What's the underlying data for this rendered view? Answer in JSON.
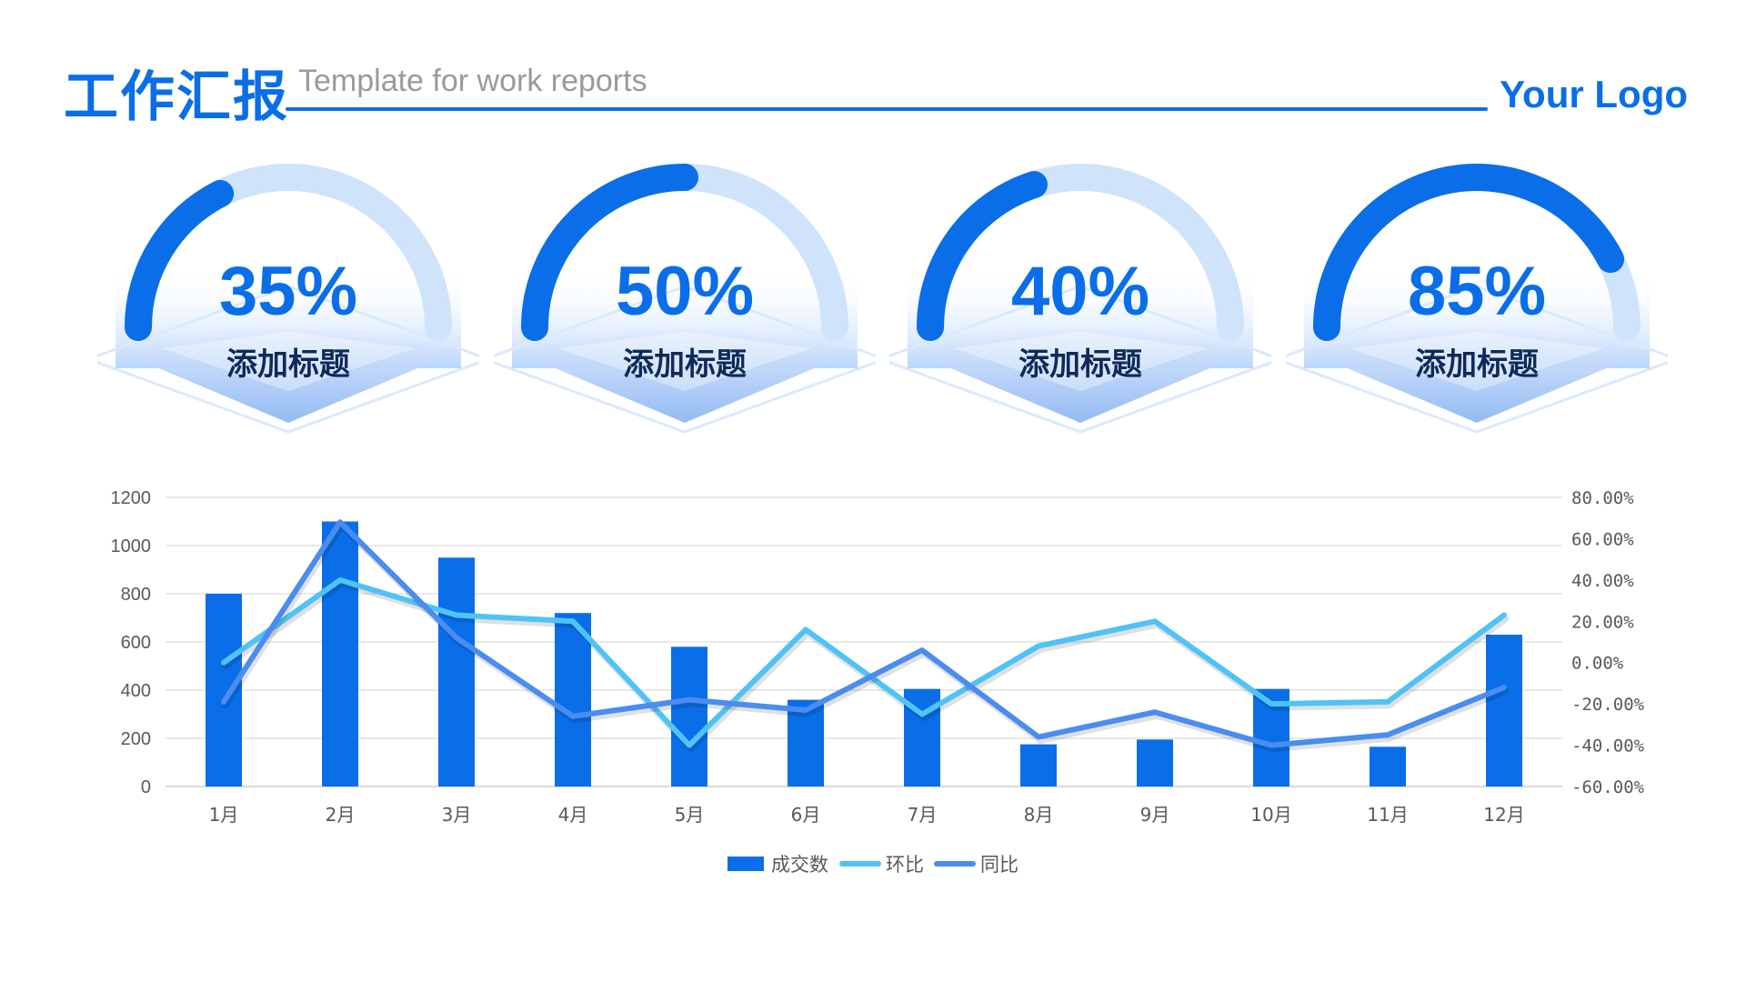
{
  "header": {
    "title": "工作汇报",
    "subtitle": "Template for work reports",
    "logo": "Your Logo"
  },
  "kpis": [
    {
      "value": "35%",
      "label": "添加标题",
      "progress": 0.35
    },
    {
      "value": "50%",
      "label": "添加标题",
      "progress": 0.5
    },
    {
      "value": "40%",
      "label": "添加标题",
      "progress": 0.4
    },
    {
      "value": "85%",
      "label": "添加标题",
      "progress": 0.85
    }
  ],
  "colors": {
    "primary": "#0a6ee8",
    "light_track": "#cfe3fb",
    "series_bar": "#0a6ee8",
    "series_mom": "#4fc3f7",
    "series_yoy": "#4a8cf0"
  },
  "chart_data": {
    "type": "bar",
    "categories": [
      "1月",
      "2月",
      "3月",
      "4月",
      "5月",
      "6月",
      "7月",
      "8月",
      "9月",
      "10月",
      "11月",
      "12月"
    ],
    "y_left": {
      "min": 0,
      "max": 1200,
      "ticks": [
        "0",
        "200",
        "400",
        "600",
        "800",
        "1000",
        "1200"
      ]
    },
    "y_right": {
      "min": -60,
      "max": 80,
      "ticks": [
        "-60.00%",
        "-40.00%",
        "-20.00%",
        "0.00%",
        "20.00%",
        "40.00%",
        "60.00%",
        "80.00%"
      ]
    },
    "grid": true,
    "legend": "bottom",
    "series": [
      {
        "name": "成交数",
        "type": "bar",
        "axis": "left",
        "values": [
          800,
          1100,
          950,
          720,
          580,
          360,
          405,
          175,
          195,
          405,
          165,
          630
        ]
      },
      {
        "name": "环比",
        "type": "line",
        "axis": "right",
        "values": [
          0,
          40,
          23,
          20,
          -40,
          16,
          -25,
          8,
          20,
          -20,
          -19,
          23
        ]
      },
      {
        "name": "同比",
        "type": "line",
        "axis": "right",
        "values": [
          -19,
          68,
          12,
          -26,
          -18,
          -23,
          6,
          -36,
          -24,
          -40,
          -35,
          -12
        ]
      }
    ]
  }
}
